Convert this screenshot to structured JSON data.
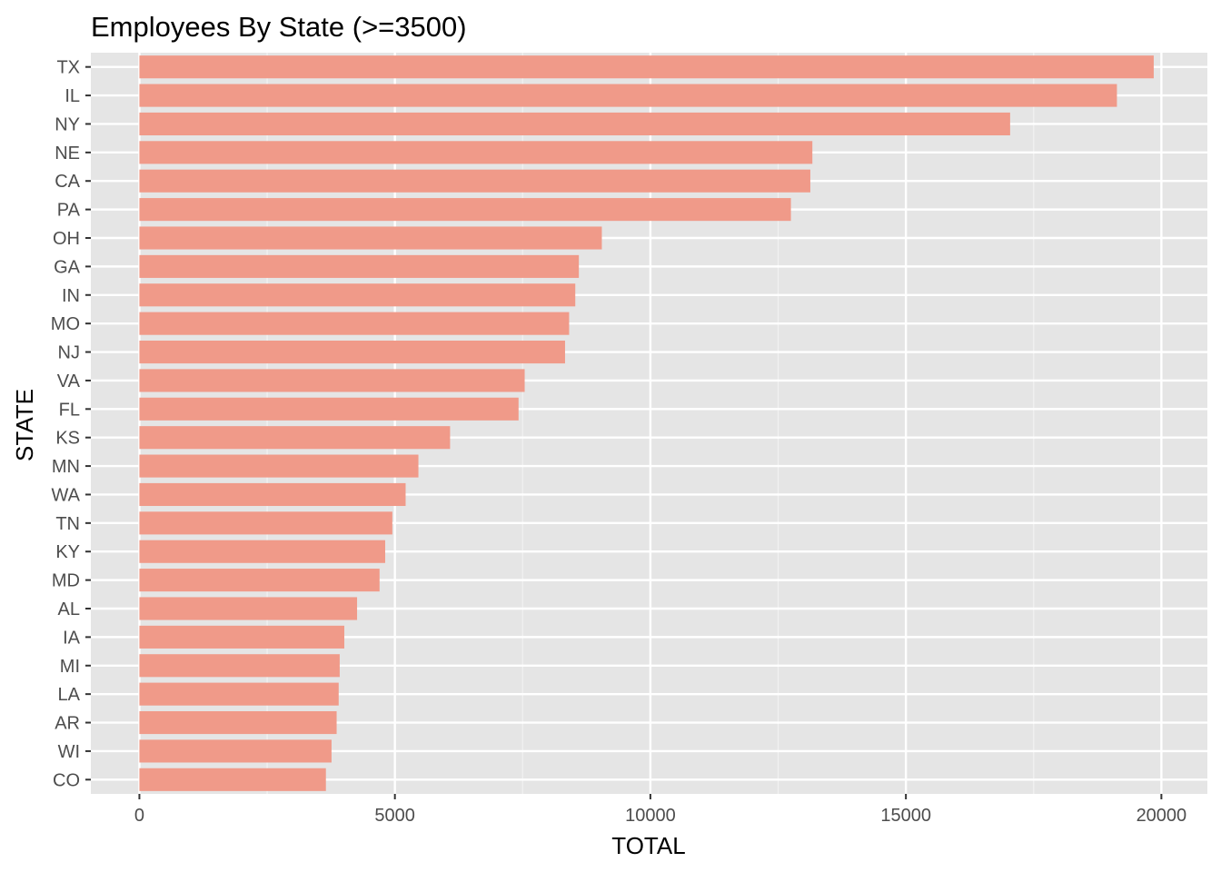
{
  "chart_data": {
    "type": "bar",
    "orientation": "horizontal",
    "title": "Employees By State (>=3500)",
    "xlabel": "TOTAL",
    "ylabel": "STATE",
    "categories": [
      "TX",
      "IL",
      "NY",
      "NE",
      "CA",
      "PA",
      "OH",
      "GA",
      "IN",
      "MO",
      "NJ",
      "VA",
      "FL",
      "KS",
      "MN",
      "WA",
      "TN",
      "KY",
      "MD",
      "AL",
      "IA",
      "MI",
      "LA",
      "AR",
      "WI",
      "CO"
    ],
    "values": [
      19850,
      19130,
      17040,
      13170,
      13130,
      12750,
      9050,
      8600,
      8530,
      8410,
      8330,
      7540,
      7420,
      6080,
      5460,
      5210,
      4950,
      4810,
      4700,
      4260,
      4010,
      3920,
      3900,
      3860,
      3760,
      3650
    ],
    "xlim": [
      -950,
      20900
    ],
    "xticks": [
      0,
      5000,
      10000,
      15000,
      20000
    ],
    "xtick_labels": [
      "0",
      "5000",
      "10000",
      "15000",
      "20000"
    ],
    "grid": true,
    "colors": {
      "bar": "#f09a89",
      "panel": "#e5e5e5",
      "grid_major": "#ffffff",
      "grid_minor": "#f2f2f2"
    }
  }
}
